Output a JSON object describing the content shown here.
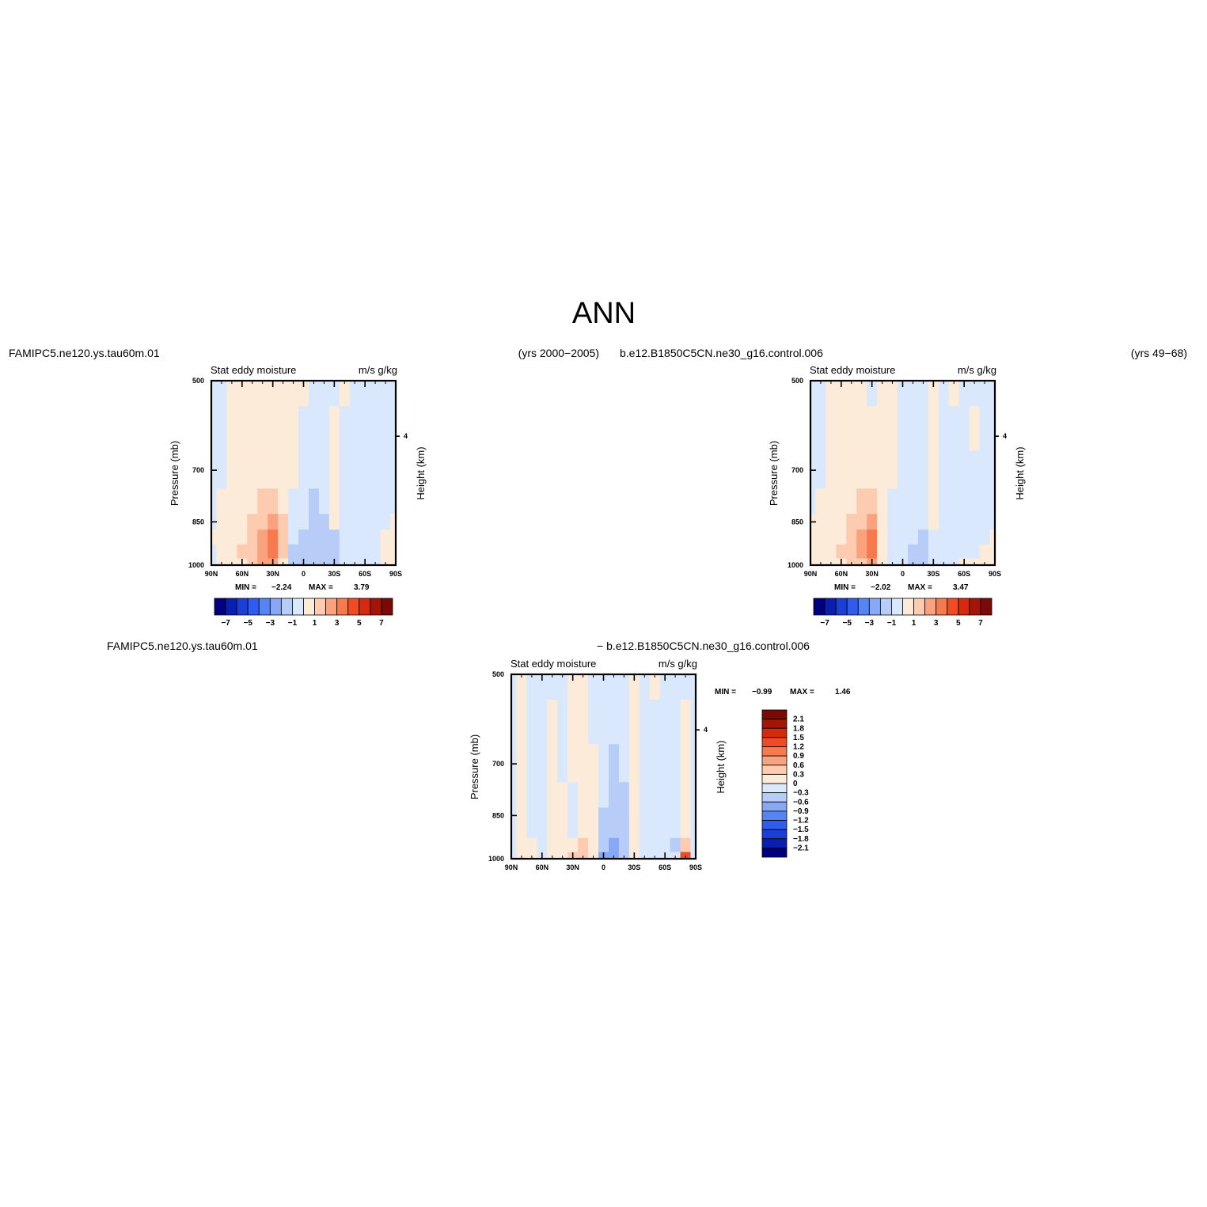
{
  "figure": {
    "title": "ANN"
  },
  "chart_data": [
    {
      "type": "heatmap",
      "panel": "model",
      "case_name": "FAMIPC5.ne120.ys.tau60m.01",
      "years": "(yrs 2000-2005)",
      "subtitle": "Stat eddy moisture",
      "units": "m/s g/kg",
      "ylabel": "Pressure (mb)",
      "ylabel_right": "Height (km)",
      "ylim": [
        1000,
        500
      ],
      "yticks": [
        500,
        700,
        850,
        1000
      ],
      "yticks_right": [
        "4"
      ],
      "xticks": [
        "90N",
        "60N",
        "30N",
        "0",
        "30S",
        "60S",
        "90S"
      ],
      "min_label": "MIN =",
      "min_value": "-2.24",
      "max_label": "MAX =",
      "max_value": "3.79",
      "colorbar": {
        "levels": [
          -7,
          -6,
          -5,
          -4,
          -3,
          -2,
          -1,
          0,
          1,
          2,
          3,
          4,
          5,
          6,
          7
        ],
        "tick_labels": [
          "-7",
          "-5",
          "-3",
          "-1",
          "1",
          "3",
          "5",
          "7"
        ]
      },
      "latitude": [
        90,
        80,
        70,
        60,
        50,
        40,
        30,
        20,
        10,
        0,
        -10,
        -20,
        -30,
        -40,
        -50,
        -60,
        -70,
        -80,
        -90
      ],
      "pressure": [
        500,
        600,
        700,
        800,
        850,
        900,
        950,
        1000
      ],
      "values": [
        [
          0,
          -0.5,
          0.3,
          0.4,
          0.5,
          0.5,
          0.6,
          0.4,
          0.4,
          0.2,
          -0.4,
          -0.5,
          -0.3,
          0.2,
          -0.4,
          -0.5,
          -0.4,
          -0.5,
          -0.3
        ],
        [
          -0.4,
          -0.6,
          0.4,
          0.5,
          0.6,
          0.7,
          0.7,
          0.6,
          0.5,
          -0.4,
          -0.5,
          -0.6,
          0.3,
          -0.4,
          -0.5,
          -0.5,
          -0.5,
          -0.5,
          -0.4
        ],
        [
          -0.5,
          -0.6,
          0.5,
          0.6,
          0.7,
          0.8,
          0.8,
          0.7,
          0.4,
          -0.5,
          -0.6,
          -0.7,
          0.4,
          -0.5,
          -0.6,
          -0.6,
          -0.5,
          -0.5,
          -0.4
        ],
        [
          -0.5,
          0.4,
          0.6,
          0.8,
          0.9,
          1.2,
          1.5,
          1.0,
          -0.3,
          -0.7,
          -1.1,
          -0.8,
          0.5,
          -0.6,
          -0.6,
          -0.6,
          -0.5,
          -0.5,
          -0.4
        ],
        [
          -0.4,
          0.5,
          0.7,
          0.9,
          1.1,
          1.6,
          2.3,
          1.4,
          -0.4,
          -0.9,
          -1.3,
          -1.0,
          0.5,
          -0.6,
          -0.6,
          -0.5,
          -0.5,
          -0.5,
          0.3
        ],
        [
          0.3,
          0.6,
          0.8,
          1.0,
          1.3,
          2.2,
          3.5,
          1.7,
          -0.6,
          -1.2,
          -1.5,
          -1.3,
          -1.1,
          -0.6,
          -0.5,
          -0.5,
          -0.4,
          0.4,
          0.4
        ],
        [
          -0.4,
          0.7,
          0.9,
          1.1,
          1.5,
          2.5,
          3.8,
          1.6,
          -1.1,
          -1.4,
          -1.6,
          -1.5,
          -1.4,
          -0.8,
          -0.4,
          -0.4,
          -0.5,
          0.5,
          0.3
        ],
        [
          -0.4,
          0.7,
          0.9,
          1.0,
          1.4,
          2.2,
          2.8,
          1.0,
          -1.2,
          -1.4,
          -1.8,
          -1.6,
          -1.4,
          -0.8,
          -0.4,
          -0.3,
          -0.5,
          0.4,
          0.3
        ]
      ]
    },
    {
      "type": "heatmap",
      "panel": "control",
      "case_name": "b.e12.B1850C5CN.ne30_g16.control.006",
      "years": "(yrs 49-68)",
      "subtitle": "Stat eddy moisture",
      "units": "m/s g/kg",
      "ylabel": "Pressure (mb)",
      "ylabel_right": "Height (km)",
      "ylim": [
        1000,
        500
      ],
      "yticks": [
        500,
        700,
        850,
        1000
      ],
      "yticks_right": [
        "4"
      ],
      "xticks": [
        "90N",
        "60N",
        "30N",
        "0",
        "30S",
        "60S",
        "90S"
      ],
      "min_label": "MIN =",
      "min_value": "-2.02",
      "max_label": "MAX =",
      "max_value": "3.47",
      "colorbar": {
        "levels": [
          -7,
          -6,
          -5,
          -4,
          -3,
          -2,
          -1,
          0,
          1,
          2,
          3,
          4,
          5,
          6,
          7
        ],
        "tick_labels": [
          "-7",
          "-5",
          "-3",
          "-1",
          "1",
          "3",
          "5",
          "7"
        ]
      },
      "latitude": [
        90,
        80,
        70,
        60,
        50,
        40,
        30,
        20,
        10,
        0,
        -10,
        -20,
        -30,
        -40,
        -50,
        -60,
        -70,
        -80,
        -90
      ],
      "pressure": [
        500,
        600,
        700,
        800,
        850,
        900,
        950,
        1000
      ],
      "values": [
        [
          -0.3,
          -0.5,
          0.4,
          0.5,
          0.6,
          0.5,
          -0.4,
          0.5,
          0.4,
          -0.4,
          -0.5,
          -0.5,
          0.3,
          -0.5,
          0.2,
          -0.5,
          -0.4,
          -0.5,
          -0.4
        ],
        [
          -0.4,
          -0.6,
          0.5,
          0.6,
          0.6,
          0.7,
          0.6,
          0.6,
          0.5,
          -0.5,
          -0.5,
          -0.6,
          0.3,
          -0.5,
          -0.4,
          -0.5,
          0.2,
          -0.5,
          -0.4
        ],
        [
          -0.5,
          -0.6,
          0.5,
          0.7,
          0.8,
          0.9,
          0.8,
          0.7,
          0.5,
          -0.5,
          -0.6,
          -0.6,
          0.4,
          -0.5,
          -0.5,
          -0.5,
          -0.5,
          -0.5,
          -0.4
        ],
        [
          -0.5,
          0.4,
          0.6,
          0.8,
          1.0,
          1.4,
          1.3,
          0.8,
          -0.4,
          -0.6,
          -0.7,
          -0.8,
          0.4,
          -0.5,
          -0.5,
          -0.5,
          -0.5,
          -0.5,
          -0.4
        ],
        [
          0.3,
          0.5,
          0.7,
          0.9,
          1.2,
          1.9,
          2.2,
          1.0,
          -0.5,
          -0.7,
          -0.8,
          -0.9,
          0.4,
          -0.5,
          -0.5,
          -0.5,
          -0.5,
          -0.4,
          -0.4
        ],
        [
          0.4,
          0.6,
          0.8,
          1.0,
          1.4,
          2.3,
          3.2,
          1.0,
          -0.6,
          -0.8,
          -0.9,
          -1.4,
          -0.5,
          -0.5,
          -0.5,
          -0.4,
          -0.4,
          -0.4,
          0.3
        ],
        [
          0.4,
          0.7,
          0.9,
          1.1,
          1.4,
          2.4,
          3.4,
          0.9,
          -0.7,
          -0.8,
          -1.0,
          -1.6,
          -0.6,
          -0.5,
          -0.4,
          -0.3,
          -0.4,
          0.3,
          0.4
        ],
        [
          0.4,
          0.6,
          0.8,
          1.0,
          1.3,
          2.0,
          2.6,
          0.8,
          -0.7,
          -0.8,
          -1.0,
          -1.5,
          -0.6,
          -0.5,
          -0.3,
          0.2,
          0.3,
          0.4,
          0.4
        ]
      ]
    },
    {
      "type": "heatmap",
      "panel": "difference",
      "case_name": "FAMIPC5.ne120.ys.tau60m.01",
      "case_name_2": "- b.e12.B1850C5CN.ne30_g16.control.006",
      "subtitle": "Stat eddy moisture",
      "units": "m/s g/kg",
      "ylabel": "Pressure (mb)",
      "ylabel_right": "Height (km)",
      "ylim": [
        1000,
        500
      ],
      "yticks": [
        500,
        700,
        850,
        1000
      ],
      "yticks_right": [
        "4"
      ],
      "xticks": [
        "90N",
        "60N",
        "30N",
        "0",
        "30S",
        "60S",
        "90S"
      ],
      "min_label": "MIN =",
      "min_value": "-0.99",
      "max_label": "MAX =",
      "max_value": "1.46",
      "colorbar": {
        "levels": [
          2.1,
          1.8,
          1.5,
          1.2,
          0.9,
          0.6,
          0.3,
          0,
          -0.3,
          -0.6,
          -0.9,
          -1.2,
          -1.5,
          -1.8,
          -2.1
        ],
        "tick_labels": [
          "2.1",
          "1.8",
          "1.5",
          "1.2",
          "0.9",
          "0.6",
          "0.3",
          "0",
          "-0.3",
          "-0.6",
          "-0.9",
          "-1.2",
          "-1.5",
          "-1.8",
          "-2.1"
        ]
      },
      "latitude": [
        90,
        80,
        70,
        60,
        50,
        40,
        30,
        20,
        10,
        0,
        -10,
        -20,
        -30,
        -40,
        -50,
        -60,
        -70,
        -80,
        -90
      ],
      "pressure": [
        500,
        600,
        700,
        800,
        850,
        900,
        950,
        1000
      ],
      "values": [
        [
          -0.1,
          0.2,
          -0.2,
          -0.2,
          -0.1,
          -0.2,
          0.2,
          0.2,
          -0.2,
          -0.1,
          -0.2,
          -0.2,
          0.2,
          -0.2,
          0.1,
          -0.2,
          -0.2,
          -0.2,
          -0.2
        ],
        [
          -0.2,
          0.2,
          -0.2,
          -0.2,
          0.2,
          -0.2,
          0.2,
          0.2,
          -0.2,
          -0.2,
          -0.2,
          -0.2,
          0.2,
          -0.2,
          -0.2,
          -0.2,
          -0.2,
          0.2,
          -0.2
        ],
        [
          -0.2,
          0.2,
          -0.2,
          -0.2,
          0.2,
          -0.2,
          0.2,
          0.2,
          0.2,
          -0.2,
          -0.3,
          -0.2,
          0.2,
          -0.2,
          -0.2,
          -0.2,
          -0.2,
          0.2,
          -0.2
        ],
        [
          -0.2,
          0.2,
          -0.2,
          -0.2,
          0.2,
          0.2,
          -0.2,
          0.2,
          0.2,
          -0.2,
          -0.4,
          -0.3,
          0.2,
          -0.2,
          -0.2,
          -0.2,
          -0.2,
          0.2,
          -0.2
        ],
        [
          -0.2,
          0.2,
          -0.2,
          -0.2,
          0.2,
          0.2,
          -0.2,
          0.2,
          0.2,
          -0.3,
          -0.4,
          -0.3,
          0.2,
          -0.2,
          -0.2,
          -0.2,
          -0.2,
          0.2,
          -0.2
        ],
        [
          -0.2,
          0.2,
          -0.2,
          -0.2,
          0.2,
          0.3,
          -0.2,
          0.3,
          0.2,
          -0.3,
          -0.5,
          -0.3,
          0.2,
          -0.2,
          -0.2,
          -0.2,
          -0.2,
          0.3,
          -0.2
        ],
        [
          -0.2,
          0.3,
          0.2,
          -0.2,
          0.2,
          0.3,
          0.2,
          0.4,
          0.3,
          -0.5,
          -0.6,
          -0.3,
          0.2,
          -0.2,
          -0.2,
          -0.2,
          -0.3,
          0.5,
          -0.2
        ],
        [
          -0.2,
          0.3,
          0.3,
          -0.2,
          0.2,
          0.3,
          0.5,
          0.6,
          0.2,
          -0.7,
          -0.6,
          -0.4,
          0.2,
          -0.2,
          -0.2,
          -0.2,
          -0.2,
          1.4,
          -0.2
        ]
      ]
    }
  ],
  "palette": {
    "diverging": [
      "#00007f",
      "#0a1fb0",
      "#1b3fd6",
      "#2f5cf0",
      "#5585f5",
      "#86a8f5",
      "#b7cdf7",
      "#d9e8fd",
      "#fdebd9",
      "#fccbb0",
      "#faa27d",
      "#f77a4e",
      "#ef4c25",
      "#d42a10",
      "#a31508",
      "#7a0a05"
    ]
  }
}
